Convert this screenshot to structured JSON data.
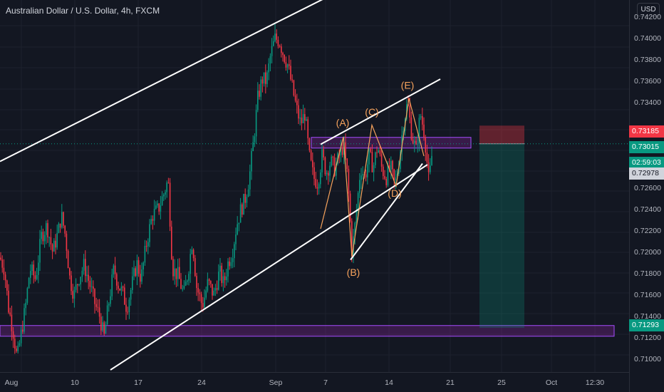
{
  "header": {
    "title": "Australian Dollar / U.S. Dollar, 4h, FXCM",
    "currency": "USD"
  },
  "chart_data": {
    "type": "candlestick",
    "symbol": "AUDUSD",
    "timeframe": "4h",
    "ylim": [
      0.7088,
      0.7436
    ],
    "y_ticks": [
      "0.74200",
      "0.74000",
      "0.73800",
      "0.73600",
      "0.73400",
      "0.72600",
      "0.72400",
      "0.72200",
      "0.72000",
      "0.71800",
      "0.71600",
      "0.71400",
      "0.71200",
      "0.71000"
    ],
    "x_ticks": [
      "Aug",
      "10",
      "17",
      "24",
      "Sep",
      "7",
      "14",
      "21",
      "25",
      "Oct",
      "12:30"
    ],
    "price_tags": [
      {
        "label": "0.73185",
        "bg": "#f23645",
        "fg": "#ffffff"
      },
      {
        "label": "0.73015",
        "bg": "#089981",
        "fg": "#ffffff"
      },
      {
        "label": "02:59:03",
        "bg": "#089981",
        "fg": "#ffffff"
      },
      {
        "label": "0.72978",
        "bg": "#d1d4dc",
        "fg": "#131722"
      },
      {
        "label": "0.71293",
        "bg": "#089981",
        "fg": "#ffffff"
      }
    ],
    "wave_labels": [
      "(A)",
      "(B)",
      "(C)",
      "(D)",
      "(E)"
    ],
    "close_keypoints": [
      [
        0,
        0.7195
      ],
      [
        6,
        0.7185
      ],
      [
        12,
        0.7148
      ],
      [
        18,
        0.7128
      ],
      [
        24,
        0.71
      ],
      [
        30,
        0.7125
      ],
      [
        36,
        0.715
      ],
      [
        42,
        0.7185
      ],
      [
        50,
        0.7175
      ],
      [
        58,
        0.7215
      ],
      [
        66,
        0.7225
      ],
      [
        74,
        0.72
      ],
      [
        82,
        0.722
      ],
      [
        86,
        0.7235
      ],
      [
        92,
        0.7215
      ],
      [
        98,
        0.7175
      ],
      [
        104,
        0.716
      ],
      [
        110,
        0.7175
      ],
      [
        118,
        0.7188
      ],
      [
        126,
        0.717
      ],
      [
        134,
        0.715
      ],
      [
        140,
        0.714
      ],
      [
        146,
        0.712
      ],
      [
        152,
        0.715
      ],
      [
        160,
        0.7185
      ],
      [
        166,
        0.717
      ],
      [
        172,
        0.7162
      ],
      [
        178,
        0.7148
      ],
      [
        186,
        0.7172
      ],
      [
        192,
        0.719
      ],
      [
        198,
        0.7175
      ],
      [
        206,
        0.721
      ],
      [
        214,
        0.7235
      ],
      [
        222,
        0.724
      ],
      [
        230,
        0.7255
      ],
      [
        236,
        0.7268
      ],
      [
        242,
        0.7185
      ],
      [
        250,
        0.7178
      ],
      [
        258,
        0.716
      ],
      [
        264,
        0.7182
      ],
      [
        270,
        0.7212
      ],
      [
        276,
        0.7168
      ],
      [
        284,
        0.715
      ],
      [
        292,
        0.7172
      ],
      [
        300,
        0.716
      ],
      [
        308,
        0.7182
      ],
      [
        314,
        0.717
      ],
      [
        320,
        0.719
      ],
      [
        326,
        0.72
      ],
      [
        332,
        0.7225
      ],
      [
        338,
        0.724
      ],
      [
        344,
        0.725
      ],
      [
        350,
        0.727
      ],
      [
        356,
        0.7305
      ],
      [
        362,
        0.7345
      ],
      [
        368,
        0.7362
      ],
      [
        374,
        0.736
      ],
      [
        380,
        0.7385
      ],
      [
        386,
        0.74
      ],
      [
        392,
        0.7398
      ],
      [
        398,
        0.7385
      ],
      [
        404,
        0.7375
      ],
      [
        410,
        0.7355
      ],
      [
        416,
        0.7335
      ],
      [
        422,
        0.732
      ],
      [
        428,
        0.733
      ],
      [
        434,
        0.729
      ],
      [
        440,
        0.727
      ],
      [
        446,
        0.7265
      ],
      [
        452,
        0.729
      ],
      [
        458,
        0.7275
      ],
      [
        464,
        0.7285
      ],
      [
        470,
        0.7278
      ],
      [
        476,
        0.729
      ],
      [
        482,
        0.73
      ],
      [
        488,
        0.727
      ],
      [
        494,
        0.72
      ],
      [
        500,
        0.7235
      ],
      [
        506,
        0.728
      ],
      [
        512,
        0.727
      ],
      [
        518,
        0.729
      ],
      [
        524,
        0.728
      ],
      [
        530,
        0.73
      ],
      [
        536,
        0.7278
      ],
      [
        542,
        0.727
      ],
      [
        548,
        0.728
      ],
      [
        554,
        0.7262
      ],
      [
        560,
        0.7285
      ],
      [
        566,
        0.732
      ],
      [
        572,
        0.734
      ],
      [
        578,
        0.731
      ],
      [
        584,
        0.7295
      ],
      [
        590,
        0.733
      ],
      [
        596,
        0.731
      ],
      [
        602,
        0.7265
      ],
      [
        606,
        0.729
      ],
      [
        608,
        0.7298
      ]
    ],
    "annotations": {
      "channel_upper": [
        [
          0,
          0.7285
        ],
        [
          460,
          0.7439
        ]
      ],
      "channel_lower": [
        [
          155,
          0.709
        ],
        [
          600,
          0.7282
        ]
      ],
      "zone_upper": [
        0.72995,
        0.73055
      ],
      "zone_lower": [
        0.71215,
        0.71315
      ],
      "triangle_upper": [
        [
          450,
          0.7301
        ],
        [
          618,
          0.7362
        ]
      ],
      "triangle_lower": [
        [
          492,
          0.7193
        ],
        [
          593,
          0.7283
        ]
      ],
      "wave_path": [
        [
          450,
          0.7222
        ],
        [
          482,
          0.7308
        ],
        [
          494,
          0.7196
        ],
        [
          522,
          0.7319
        ],
        [
          556,
          0.7262
        ],
        [
          574,
          0.7344
        ],
        [
          595,
          0.729
        ]
      ],
      "position": {
        "entry": 0.73015,
        "stop": 0.73185,
        "target": 0.71293
      }
    }
  }
}
